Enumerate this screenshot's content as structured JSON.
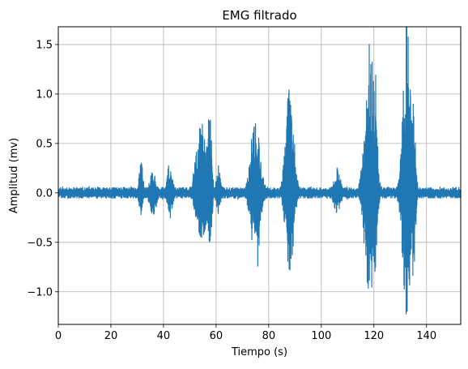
{
  "chart_data": {
    "type": "line",
    "title": "EMG filtrado",
    "xlabel": "Tiempo (s)",
    "ylabel": "Amplitud (mv)",
    "xlim": [
      0,
      153
    ],
    "ylim": [
      -1.33,
      1.68
    ],
    "xticks": [
      0,
      20,
      40,
      60,
      80,
      100,
      120,
      140
    ],
    "yticks": [
      -1.0,
      -0.5,
      0.0,
      0.5,
      1.0,
      1.5
    ],
    "xtick_labels": [
      "0",
      "20",
      "40",
      "60",
      "80",
      "100",
      "120",
      "140"
    ],
    "ytick_labels": [
      "−1.0",
      "−0.5",
      "0.0",
      "0.5",
      "1.0",
      "1.5"
    ],
    "grid": true,
    "series": [
      {
        "color": "#1f77b4",
        "baseline_amplitude": 0.05,
        "bursts": [
          {
            "center": 31.5,
            "width": 1.5,
            "pos_peak": 0.3,
            "neg_peak": -0.22
          },
          {
            "center": 36.0,
            "width": 2.5,
            "pos_peak": 0.2,
            "neg_peak": -0.22
          },
          {
            "center": 42.5,
            "width": 2.0,
            "pos_peak": 0.28,
            "neg_peak": -0.2
          },
          {
            "center": 54.5,
            "width": 4.0,
            "pos_peak": 0.7,
            "neg_peak": -0.45
          },
          {
            "center": 57.5,
            "width": 1.5,
            "pos_peak": 0.86,
            "neg_peak": -0.6
          },
          {
            "center": 61.0,
            "width": 1.8,
            "pos_peak": 0.22,
            "neg_peak": -0.2
          },
          {
            "center": 75.0,
            "width": 3.5,
            "pos_peak": 0.7,
            "neg_peak": -0.62
          },
          {
            "center": 88.0,
            "width": 3.0,
            "pos_peak": 1.06,
            "neg_peak": -0.78
          },
          {
            "center": 106.0,
            "width": 2.5,
            "pos_peak": 0.22,
            "neg_peak": -0.2
          },
          {
            "center": 118.5,
            "width": 3.5,
            "pos_peak": 1.52,
            "neg_peak": -1.03
          },
          {
            "center": 120.5,
            "width": 1.5,
            "pos_peak": 1.1,
            "neg_peak": -0.8
          },
          {
            "center": 132.5,
            "width": 3.0,
            "pos_peak": 1.54,
            "neg_peak": -1.2
          },
          {
            "center": 135.0,
            "width": 1.5,
            "pos_peak": 0.9,
            "neg_peak": -0.8
          }
        ]
      }
    ]
  }
}
